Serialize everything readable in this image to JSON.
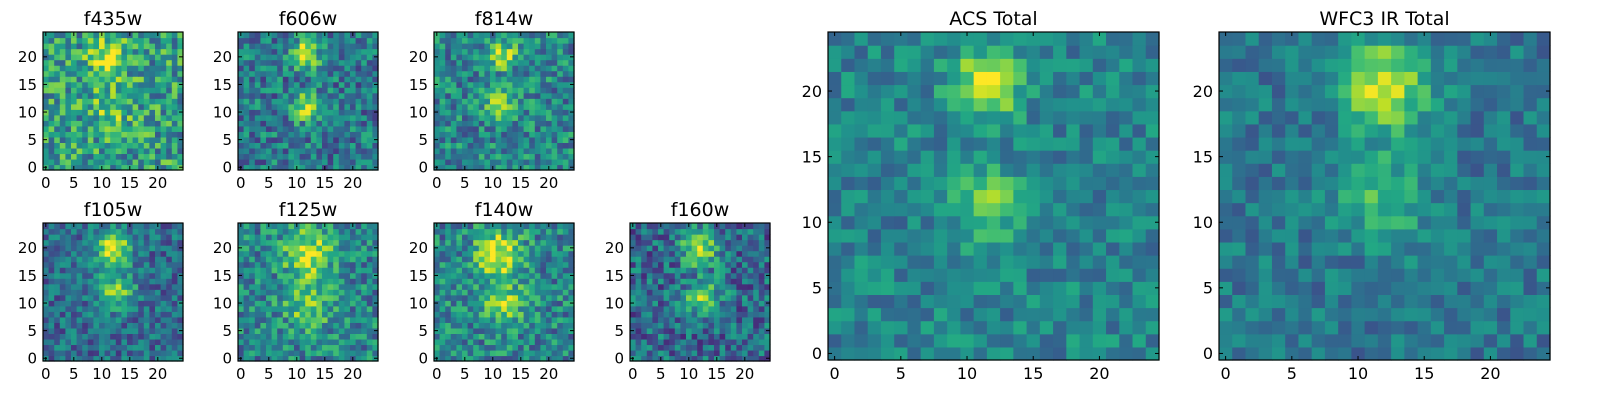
{
  "chart_data": [
    {
      "type": "heatmap",
      "title": "f435w",
      "colormap": "viridis",
      "grid": false,
      "xlim": [
        -0.5,
        24.5
      ],
      "ylim": [
        -0.5,
        24.5
      ],
      "xticks": [
        0,
        5,
        10,
        15,
        20
      ],
      "yticks": [
        0,
        5,
        10,
        15,
        20
      ],
      "sources": [
        {
          "x": 11,
          "y": 20,
          "amp": 0.45,
          "sigma": 2.2
        },
        {
          "x": 12,
          "y": 11,
          "amp": 0.25,
          "sigma": 2.5
        }
      ],
      "background": 0.55,
      "noise": 0.35
    },
    {
      "type": "heatmap",
      "title": "f606w",
      "colormap": "viridis",
      "grid": false,
      "xlim": [
        -0.5,
        24.5
      ],
      "ylim": [
        -0.5,
        24.5
      ],
      "xticks": [
        0,
        5,
        10,
        15,
        20
      ],
      "yticks": [
        0,
        5,
        10,
        15,
        20
      ],
      "sources": [
        {
          "x": 11.5,
          "y": 20.5,
          "amp": 0.55,
          "sigma": 1.8
        },
        {
          "x": 11.5,
          "y": 11,
          "amp": 0.45,
          "sigma": 1.8
        }
      ],
      "background": 0.4,
      "noise": 0.3
    },
    {
      "type": "heatmap",
      "title": "f814w",
      "colormap": "viridis",
      "grid": false,
      "xlim": [
        -0.5,
        24.5
      ],
      "ylim": [
        -0.5,
        24.5
      ],
      "xticks": [
        0,
        5,
        10,
        15,
        20
      ],
      "yticks": [
        0,
        5,
        10,
        15,
        20
      ],
      "sources": [
        {
          "x": 11.5,
          "y": 20.5,
          "amp": 0.5,
          "sigma": 1.8
        },
        {
          "x": 11.5,
          "y": 11,
          "amp": 0.45,
          "sigma": 1.8
        }
      ],
      "background": 0.45,
      "noise": 0.3
    },
    {
      "type": "heatmap",
      "title": "f105w",
      "colormap": "viridis",
      "grid": false,
      "xlim": [
        -0.5,
        24.5
      ],
      "ylim": [
        -0.5,
        24.5
      ],
      "xticks": [
        0,
        5,
        10,
        15,
        20
      ],
      "yticks": [
        0,
        5,
        10,
        15,
        20
      ],
      "sources": [
        {
          "x": 12,
          "y": 20,
          "amp": 0.6,
          "sigma": 2.3
        },
        {
          "x": 12.5,
          "y": 12,
          "amp": 0.45,
          "sigma": 2.3
        }
      ],
      "background": 0.35,
      "noise": 0.25
    },
    {
      "type": "heatmap",
      "title": "f125w",
      "colormap": "viridis",
      "grid": false,
      "xlim": [
        -0.5,
        24.5
      ],
      "ylim": [
        -0.5,
        24.5
      ],
      "xticks": [
        0,
        5,
        10,
        15,
        20
      ],
      "yticks": [
        0,
        5,
        10,
        15,
        20
      ],
      "sources": [
        {
          "x": 12,
          "y": 19,
          "amp": 0.5,
          "sigma": 3
        },
        {
          "x": 12,
          "y": 10,
          "amp": 0.35,
          "sigma": 3
        }
      ],
      "background": 0.45,
      "noise": 0.3
    },
    {
      "type": "heatmap",
      "title": "f140w",
      "colormap": "viridis",
      "grid": false,
      "xlim": [
        -0.5,
        24.5
      ],
      "ylim": [
        -0.5,
        24.5
      ],
      "xticks": [
        0,
        5,
        10,
        15,
        20
      ],
      "yticks": [
        0,
        5,
        10,
        15,
        20
      ],
      "sources": [
        {
          "x": 11,
          "y": 19,
          "amp": 0.55,
          "sigma": 2.8
        },
        {
          "x": 12,
          "y": 10,
          "amp": 0.35,
          "sigma": 2.8
        }
      ],
      "background": 0.45,
      "noise": 0.3
    },
    {
      "type": "heatmap",
      "title": "f160w",
      "colormap": "viridis",
      "grid": false,
      "xlim": [
        -0.5,
        24.5
      ],
      "ylim": [
        -0.5,
        24.5
      ],
      "xticks": [
        0,
        5,
        10,
        15,
        20
      ],
      "yticks": [
        0,
        5,
        10,
        15,
        20
      ],
      "sources": [
        {
          "x": 12,
          "y": 20,
          "amp": 0.55,
          "sigma": 2.2
        },
        {
          "x": 12.5,
          "y": 11,
          "amp": 0.45,
          "sigma": 2.2
        }
      ],
      "background": 0.35,
      "noise": 0.3
    },
    {
      "type": "heatmap",
      "title": "ACS Total",
      "colormap": "viridis",
      "grid": false,
      "xlim": [
        -0.5,
        24.5
      ],
      "ylim": [
        -0.5,
        24.5
      ],
      "xticks": [
        0,
        5,
        10,
        15,
        20
      ],
      "yticks": [
        0,
        5,
        10,
        15,
        20
      ],
      "sources": [
        {
          "x": 11.5,
          "y": 20.5,
          "amp": 0.5,
          "sigma": 1.8
        },
        {
          "x": 11.5,
          "y": 11.5,
          "amp": 0.35,
          "sigma": 1.8
        }
      ],
      "background": 0.45,
      "noise": 0.2
    },
    {
      "type": "heatmap",
      "title": "WFC3 IR Total",
      "colormap": "viridis",
      "grid": false,
      "xlim": [
        -0.5,
        24.5
      ],
      "ylim": [
        -0.5,
        24.5
      ],
      "xticks": [
        0,
        5,
        10,
        15,
        20
      ],
      "yticks": [
        0,
        5,
        10,
        15,
        20
      ],
      "sources": [
        {
          "x": 12,
          "y": 20.5,
          "amp": 0.55,
          "sigma": 2.3
        },
        {
          "x": 12,
          "y": 12,
          "amp": 0.3,
          "sigma": 2.3
        }
      ],
      "background": 0.4,
      "noise": 0.18
    }
  ]
}
